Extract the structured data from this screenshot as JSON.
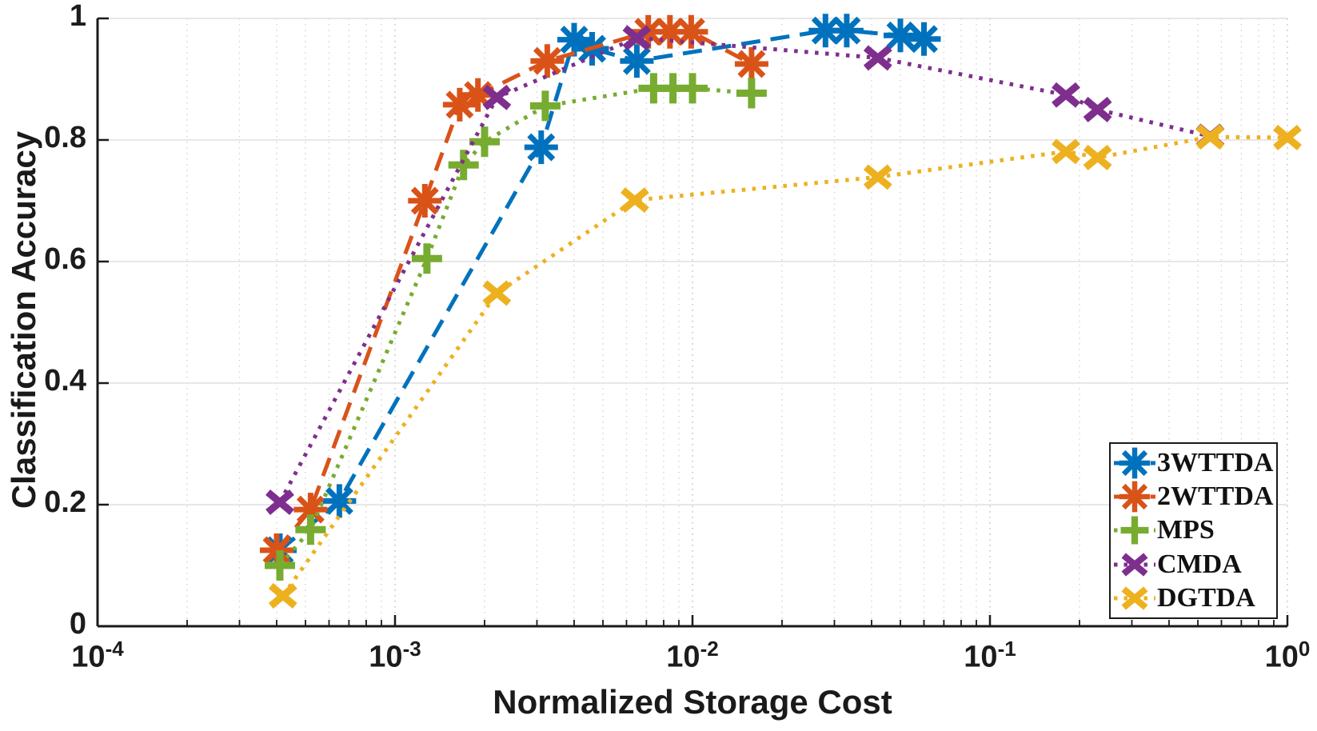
{
  "chart_data": {
    "type": "line",
    "title": "",
    "xlabel": "Normalized Storage Cost",
    "ylabel": "Classification Accuracy",
    "x_scale": "log10",
    "xlim": [
      0.0001,
      1
    ],
    "ylim": [
      0,
      1
    ],
    "x_tick_exponents": [
      -4,
      -3,
      -2,
      -1,
      0
    ],
    "x_tick_base": "10",
    "y_ticks": [
      0,
      0.2,
      0.4,
      0.6,
      0.8,
      1
    ],
    "y_tick_labels": [
      "0",
      "0.2",
      "0.4",
      "0.6",
      "0.8",
      "1"
    ],
    "grid": {
      "horizontal": "solid",
      "vertical_major": "dotted",
      "vertical_minor": "dotted",
      "minor_x": true
    },
    "legend": {
      "position": "lower-right",
      "border": true
    },
    "series": [
      {
        "name": "3WTTDA",
        "color": "#0072BD",
        "line_style": "dashed",
        "marker": "asterisk",
        "points": [
          [
            0.00041,
            0.125
          ],
          [
            0.00065,
            0.206
          ],
          [
            0.0031,
            0.788
          ],
          [
            0.004,
            0.965
          ],
          [
            0.0046,
            0.95
          ],
          [
            0.0065,
            0.93
          ],
          [
            0.028,
            0.98
          ],
          [
            0.033,
            0.98
          ],
          [
            0.05,
            0.972
          ],
          [
            0.06,
            0.966
          ]
        ]
      },
      {
        "name": "2WTTDA",
        "color": "#D95319",
        "line_style": "dashed",
        "marker": "asterisk",
        "points": [
          [
            0.0004,
            0.125
          ],
          [
            0.00052,
            0.192
          ],
          [
            0.00126,
            0.7
          ],
          [
            0.00165,
            0.858
          ],
          [
            0.0019,
            0.874
          ],
          [
            0.00325,
            0.93
          ],
          [
            0.0071,
            0.978
          ],
          [
            0.0084,
            0.978
          ],
          [
            0.0099,
            0.978
          ],
          [
            0.0158,
            0.925
          ]
        ]
      },
      {
        "name": "MPS",
        "color": "#77AC30",
        "line_style": "dotted",
        "marker": "plus",
        "points": [
          [
            0.00041,
            0.1
          ],
          [
            0.00052,
            0.159
          ],
          [
            0.00128,
            0.605
          ],
          [
            0.0017,
            0.759
          ],
          [
            0.002,
            0.797
          ],
          [
            0.0032,
            0.856
          ],
          [
            0.0074,
            0.885
          ],
          [
            0.0086,
            0.885
          ],
          [
            0.01,
            0.885
          ],
          [
            0.0158,
            0.877
          ]
        ]
      },
      {
        "name": "CMDA",
        "color": "#7E2F8E",
        "line_style": "dotted",
        "marker": "x",
        "points": [
          [
            0.00041,
            0.204
          ],
          [
            0.0022,
            0.87
          ],
          [
            0.0065,
            0.968
          ],
          [
            0.042,
            0.935
          ],
          [
            0.18,
            0.874
          ],
          [
            0.23,
            0.85
          ],
          [
            0.55,
            0.806
          ]
        ]
      },
      {
        "name": "DGTDA",
        "color": "#EDB120",
        "line_style": "dotted",
        "marker": "x",
        "points": [
          [
            0.00042,
            0.05
          ],
          [
            0.0022,
            0.548
          ],
          [
            0.0064,
            0.701
          ],
          [
            0.042,
            0.739
          ],
          [
            0.18,
            0.781
          ],
          [
            0.23,
            0.771
          ],
          [
            0.55,
            0.805
          ],
          [
            1.0,
            0.804
          ]
        ]
      }
    ]
  }
}
